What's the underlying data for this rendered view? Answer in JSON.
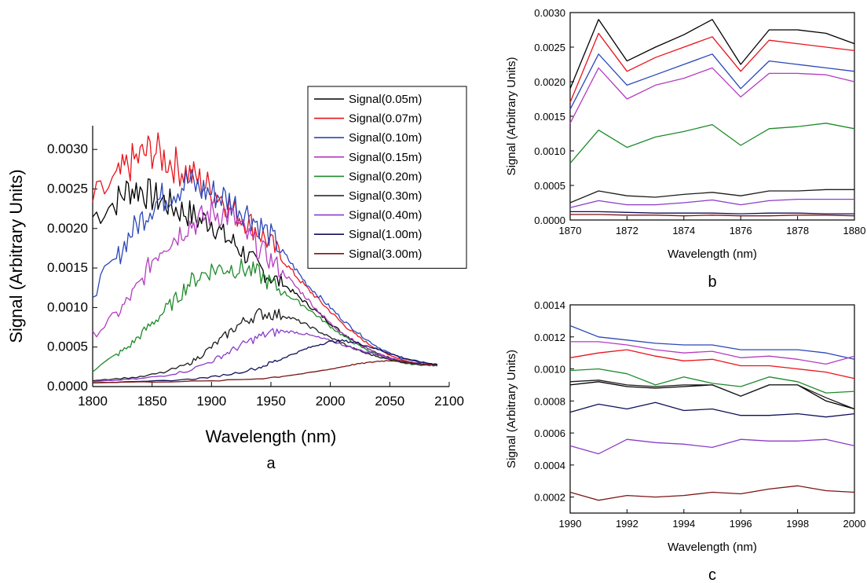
{
  "figure": {
    "series_colors": [
      "#000000",
      "#e8141b",
      "#2b47b8",
      "#b43cc0",
      "#1f8a2c",
      "#1c1c1c",
      "#8a3cc8",
      "#0f0f5a",
      "#7a1515"
    ]
  },
  "chart_data": [
    {
      "panel": "a",
      "type": "line",
      "panel_label": "a",
      "xlabel": "Wavelength (nm)",
      "ylabel": "Signal (Arbitrary Units)",
      "xlim": [
        1800,
        2100
      ],
      "ylim": [
        0,
        0.0033
      ],
      "xticks": [
        "1800",
        "1850",
        "1900",
        "1950",
        "2000",
        "2050",
        "2100"
      ],
      "yticks": [
        "0.0000",
        "0.0005",
        "0.0010",
        "0.0015",
        "0.0020",
        "0.0025",
        "0.0030"
      ],
      "grid": false,
      "legend": "top-right",
      "series": [
        {
          "name": "Signal(0.05m)",
          "x": [
            1800,
            1820,
            1830,
            1840,
            1850,
            1860,
            1870,
            1880,
            1890,
            1900,
            1910,
            1920,
            1930,
            1940,
            1950,
            1960,
            1970,
            1980,
            1990,
            2000,
            2010,
            2020,
            2030,
            2040,
            2050,
            2060,
            2070,
            2080,
            2090
          ],
          "y": [
            0.00215,
            0.00235,
            0.0025,
            0.0025,
            0.0024,
            0.00235,
            0.00225,
            0.0022,
            0.0021,
            0.0021,
            0.0019,
            0.0018,
            0.00165,
            0.0015,
            0.00138,
            0.0013,
            0.00118,
            0.00105,
            0.00093,
            0.0008,
            0.00068,
            0.00058,
            0.0005,
            0.00042,
            0.00036,
            0.00032,
            0.0003,
            0.00028,
            0.00027
          ]
        },
        {
          "name": "Signal(0.07m)",
          "x": [
            1800,
            1820,
            1830,
            1840,
            1850,
            1860,
            1870,
            1880,
            1890,
            1900,
            1910,
            1920,
            1930,
            1940,
            1950,
            1960,
            1970,
            1980,
            1990,
            2000,
            2010,
            2020,
            2030,
            2040,
            2050,
            2060,
            2070,
            2080,
            2090
          ],
          "y": [
            0.00235,
            0.0026,
            0.0028,
            0.0029,
            0.003,
            0.0029,
            0.0028,
            0.0027,
            0.0026,
            0.0025,
            0.00238,
            0.0022,
            0.0021,
            0.00195,
            0.0018,
            0.0016,
            0.00142,
            0.00125,
            0.0011,
            0.00095,
            0.0008,
            0.00067,
            0.00056,
            0.00047,
            0.0004,
            0.00034,
            0.0003,
            0.00028,
            0.00027
          ]
        },
        {
          "name": "Signal(0.10m)",
          "x": [
            1800,
            1820,
            1830,
            1840,
            1850,
            1860,
            1870,
            1880,
            1890,
            1900,
            1910,
            1920,
            1930,
            1940,
            1950,
            1960,
            1970,
            1980,
            1990,
            2000,
            2010,
            2020,
            2030,
            2040,
            2050,
            2060,
            2070,
            2080,
            2090
          ],
          "y": [
            0.0012,
            0.0016,
            0.0019,
            0.0021,
            0.0023,
            0.0024,
            0.0025,
            0.0026,
            0.0025,
            0.00245,
            0.0024,
            0.0023,
            0.0022,
            0.00205,
            0.0019,
            0.0017,
            0.0015,
            0.0013,
            0.00115,
            0.001,
            0.00085,
            0.00072,
            0.0006,
            0.0005,
            0.00042,
            0.00036,
            0.00032,
            0.0003,
            0.00028
          ]
        },
        {
          "name": "Signal(0.15m)",
          "x": [
            1800,
            1820,
            1830,
            1840,
            1850,
            1860,
            1870,
            1880,
            1890,
            1900,
            1910,
            1920,
            1930,
            1940,
            1950,
            1960,
            1970,
            1980,
            1990,
            2000,
            2010,
            2020,
            2030,
            2040,
            2050,
            2060,
            2070,
            2080,
            2090
          ],
          "y": [
            0.00065,
            0.0009,
            0.0011,
            0.0013,
            0.0016,
            0.0018,
            0.0019,
            0.00205,
            0.0021,
            0.0022,
            0.0022,
            0.0021,
            0.0019,
            0.00175,
            0.0016,
            0.00145,
            0.00128,
            0.00112,
            0.00095,
            0.0008,
            0.00068,
            0.00058,
            0.00049,
            0.00042,
            0.00036,
            0.00032,
            0.0003,
            0.00028,
            0.00027
          ]
        },
        {
          "name": "Signal(0.20m)",
          "x": [
            1800,
            1820,
            1830,
            1840,
            1850,
            1860,
            1870,
            1880,
            1890,
            1900,
            1910,
            1920,
            1930,
            1940,
            1950,
            1960,
            1970,
            1980,
            1990,
            2000,
            2010,
            2020,
            2030,
            2040,
            2050,
            2060,
            2070,
            2080,
            2090
          ],
          "y": [
            0.0002,
            0.0004,
            0.0005,
            0.00065,
            0.0008,
            0.00095,
            0.0011,
            0.0013,
            0.0014,
            0.00148,
            0.0015,
            0.0015,
            0.00148,
            0.00142,
            0.0013,
            0.0012,
            0.0011,
            0.001,
            0.00088,
            0.00076,
            0.00065,
            0.00055,
            0.00047,
            0.0004,
            0.00034,
            0.0003,
            0.00028,
            0.00027,
            0.00026
          ]
        },
        {
          "name": "Signal(0.30m)",
          "x": [
            1800,
            1820,
            1840,
            1860,
            1880,
            1890,
            1900,
            1910,
            1920,
            1930,
            1940,
            1950,
            1960,
            1970,
            1980,
            1990,
            2000,
            2010,
            2020,
            2030,
            2040,
            2050,
            2060,
            2070,
            2080,
            2090
          ],
          "y": [
            8e-05,
            0.0001,
            0.00012,
            0.00018,
            0.00028,
            0.00038,
            0.0005,
            0.00062,
            0.00075,
            0.00085,
            0.00092,
            0.00092,
            0.0009,
            0.00085,
            0.00078,
            0.0007,
            0.00062,
            0.00055,
            0.00048,
            0.00042,
            0.00038,
            0.00034,
            0.00031,
            0.00029,
            0.00028,
            0.00027
          ]
        },
        {
          "name": "Signal(0.40m)",
          "x": [
            1800,
            1820,
            1840,
            1860,
            1880,
            1900,
            1910,
            1920,
            1930,
            1940,
            1950,
            1960,
            1970,
            1980,
            1990,
            2000,
            2010,
            2020,
            2030,
            2040,
            2050,
            2060,
            2070,
            2080,
            2090
          ],
          "y": [
            6e-05,
            8e-05,
            0.0001,
            0.00014,
            0.0002,
            0.00032,
            0.0004,
            0.00048,
            0.00056,
            0.00063,
            0.00068,
            0.0007,
            0.00069,
            0.00066,
            0.00062,
            0.00058,
            0.00053,
            0.00048,
            0.00044,
            0.0004,
            0.00036,
            0.00033,
            0.0003,
            0.00028,
            0.00027
          ]
        },
        {
          "name": "Signal(1.00m)",
          "x": [
            1800,
            1840,
            1880,
            1900,
            1920,
            1940,
            1950,
            1960,
            1970,
            1980,
            1990,
            2000,
            2010,
            2020,
            2030,
            2040,
            2050,
            2060,
            2070,
            2080,
            2090
          ],
          "y": [
            5e-05,
            6e-05,
            9e-05,
            0.00012,
            0.00017,
            0.00024,
            0.0003,
            0.00036,
            0.00042,
            0.00048,
            0.00053,
            0.00057,
            0.00058,
            0.00056,
            0.00052,
            0.00047,
            0.00042,
            0.00037,
            0.00033,
            0.0003,
            0.00028
          ]
        },
        {
          "name": "Signal(3.00m)",
          "x": [
            1800,
            1850,
            1900,
            1940,
            1960,
            1980,
            2000,
            2010,
            2020,
            2030,
            2040,
            2050,
            2060,
            2070,
            2080,
            2090
          ],
          "y": [
            5e-05,
            6e-05,
            7e-05,
            0.0001,
            0.00013,
            0.00017,
            0.00022,
            0.00025,
            0.00028,
            0.0003,
            0.00032,
            0.00033,
            0.00032,
            0.0003,
            0.00028,
            0.00027
          ]
        }
      ]
    },
    {
      "panel": "b",
      "type": "line",
      "panel_label": "b",
      "xlabel": "Wavelength (nm)",
      "ylabel": "Signal (Arbitrary Units)",
      "xlim": [
        1870,
        1880
      ],
      "ylim": [
        0,
        0.003
      ],
      "xticks": [
        "1870",
        "1872",
        "1874",
        "1876",
        "1878",
        "1880"
      ],
      "yticks": [
        "0.0000",
        "0.0005",
        "0.0010",
        "0.0015",
        "0.0020",
        "0.0025",
        "0.0030"
      ],
      "grid": false,
      "x": [
        1870,
        1871,
        1872,
        1873,
        1874,
        1875,
        1876,
        1877,
        1878,
        1879,
        1880
      ],
      "series": [
        {
          "values": [
            0.0019,
            0.0029,
            0.0023,
            0.0025,
            0.00268,
            0.0029,
            0.00225,
            0.00275,
            0.00275,
            0.0027,
            0.00255
          ]
        },
        {
          "values": [
            0.0017,
            0.0027,
            0.00215,
            0.00235,
            0.0025,
            0.00265,
            0.00215,
            0.0026,
            0.00255,
            0.0025,
            0.00245
          ]
        },
        {
          "values": [
            0.0016,
            0.0024,
            0.00195,
            0.0021,
            0.00225,
            0.0024,
            0.0019,
            0.0023,
            0.00225,
            0.0022,
            0.00215
          ]
        },
        {
          "values": [
            0.0014,
            0.0022,
            0.00175,
            0.00195,
            0.00205,
            0.0022,
            0.00178,
            0.00212,
            0.00212,
            0.0021,
            0.002
          ]
        },
        {
          "values": [
            0.00082,
            0.0013,
            0.00105,
            0.0012,
            0.00128,
            0.00138,
            0.00108,
            0.00132,
            0.00135,
            0.0014,
            0.00132
          ]
        },
        {
          "values": [
            0.00025,
            0.00042,
            0.00035,
            0.00033,
            0.00037,
            0.0004,
            0.00035,
            0.00042,
            0.00042,
            0.00044,
            0.00044
          ]
        },
        {
          "values": [
            0.00018,
            0.00028,
            0.00022,
            0.00022,
            0.00025,
            0.00029,
            0.00022,
            0.00028,
            0.0003,
            0.0003,
            0.0003
          ]
        },
        {
          "values": [
            0.00012,
            0.00012,
            0.00011,
            0.0001,
            0.0001,
            0.0001,
            9e-05,
            0.0001,
            0.0001,
            9e-05,
            9e-05
          ]
        },
        {
          "values": [
            8e-05,
            8e-05,
            7e-05,
            7e-05,
            6e-05,
            7e-05,
            6e-05,
            6e-05,
            7e-05,
            7e-05,
            6e-05
          ]
        }
      ]
    },
    {
      "panel": "c",
      "type": "line",
      "panel_label": "c",
      "xlabel": "Wavelength (nm)",
      "ylabel": "Signal (Arbitrary Units)",
      "xlim": [
        1990,
        2000
      ],
      "ylim": [
        0.0001,
        0.0014
      ],
      "xticks": [
        "1990",
        "1992",
        "1994",
        "1996",
        "1998",
        "2000"
      ],
      "yticks": [
        "0.0002",
        "0.0004",
        "0.0006",
        "0.0008",
        "0.0010",
        "0.0012",
        "0.0014"
      ],
      "grid": false,
      "x": [
        1990,
        1991,
        1992,
        1993,
        1994,
        1995,
        1996,
        1997,
        1998,
        1999,
        2000
      ],
      "series": [
        {
          "values": [
            0.0009,
            0.00092,
            0.00089,
            0.00088,
            0.00089,
            0.0009,
            0.00083,
            0.0009,
            0.0009,
            0.0008,
            0.00075
          ]
        },
        {
          "values": [
            0.00107,
            0.0011,
            0.00112,
            0.00108,
            0.00105,
            0.00106,
            0.00102,
            0.00102,
            0.001,
            0.00098,
            0.00094
          ]
        },
        {
          "values": [
            0.00127,
            0.0012,
            0.00118,
            0.00116,
            0.00115,
            0.00115,
            0.00112,
            0.00112,
            0.00112,
            0.0011,
            0.00106
          ]
        },
        {
          "values": [
            0.00117,
            0.00117,
            0.00115,
            0.00112,
            0.0011,
            0.00111,
            0.00107,
            0.00108,
            0.00106,
            0.00103,
            0.00108
          ]
        },
        {
          "values": [
            0.00099,
            0.001,
            0.00097,
            0.0009,
            0.00095,
            0.00091,
            0.00089,
            0.00095,
            0.00092,
            0.00085,
            0.00086
          ]
        },
        {
          "values": [
            0.00092,
            0.00093,
            0.0009,
            0.00089,
            0.0009,
            0.0009,
            0.00083,
            0.0009,
            0.0009,
            0.00082,
            0.00075
          ]
        },
        {
          "values": [
            0.00052,
            0.00047,
            0.00056,
            0.00054,
            0.00053,
            0.00051,
            0.00056,
            0.00055,
            0.00055,
            0.00056,
            0.00052
          ]
        },
        {
          "values": [
            0.00073,
            0.00078,
            0.00075,
            0.00079,
            0.00074,
            0.00075,
            0.00071,
            0.00071,
            0.00072,
            0.0007,
            0.00072
          ]
        },
        {
          "values": [
            0.00023,
            0.00018,
            0.00021,
            0.0002,
            0.00021,
            0.00023,
            0.00022,
            0.00025,
            0.00027,
            0.00024,
            0.00023
          ]
        }
      ]
    }
  ]
}
